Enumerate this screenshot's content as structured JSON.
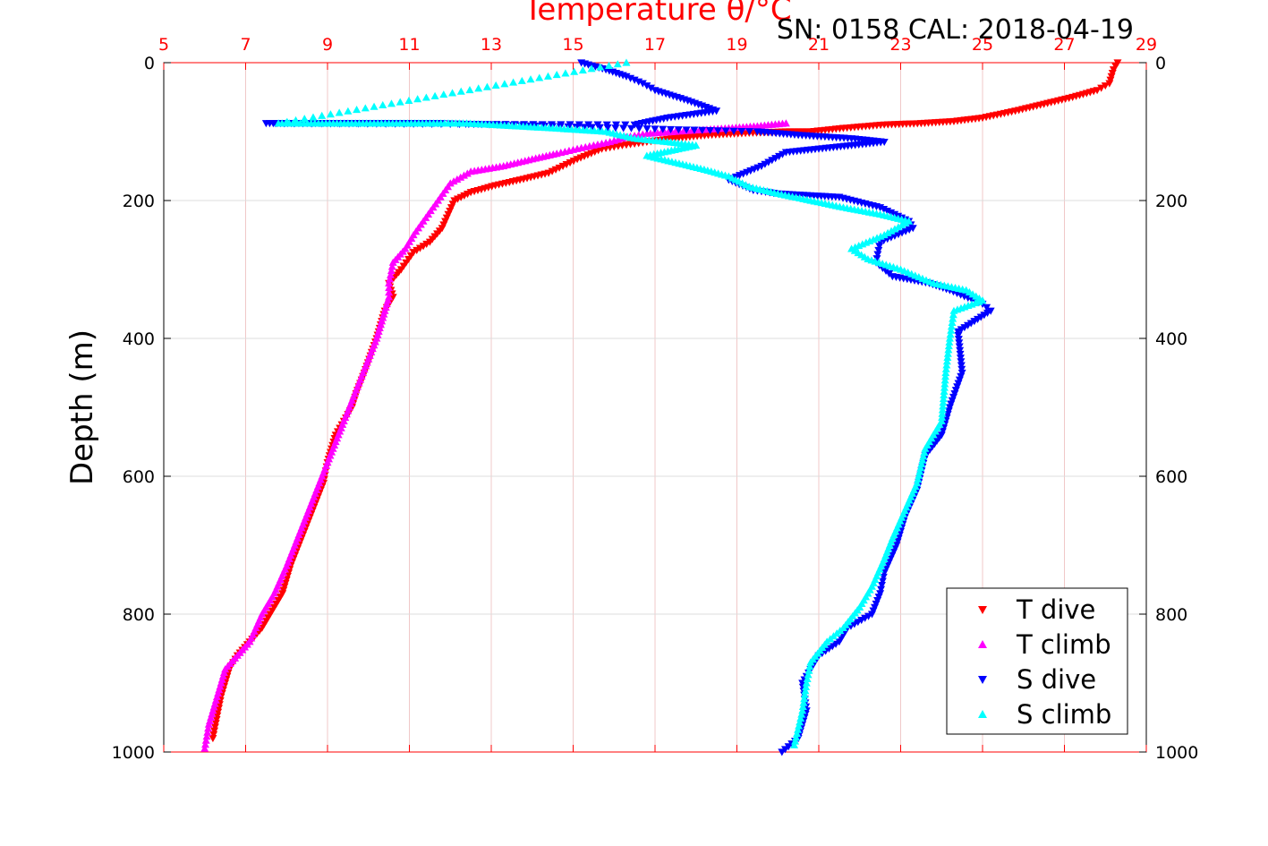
{
  "chart_data": {
    "type": "scatter",
    "title": "Temperature θ/°C",
    "subtitle": "SN: 0158  CAL: 2018-04-19",
    "ylabel": "Depth (m)",
    "xlim": [
      5,
      29
    ],
    "ylim": [
      0,
      1000
    ],
    "y_reversed": true,
    "grid": true,
    "x_ticks": [
      "5",
      "7",
      "9",
      "11",
      "13",
      "15",
      "17",
      "19",
      "21",
      "23",
      "25",
      "27",
      "29"
    ],
    "y_ticks": [
      "0",
      "200",
      "400",
      "600",
      "800",
      "1000"
    ],
    "legend_position": "bottom-right",
    "series": [
      {
        "name": "T dive",
        "color": "#ff0000",
        "marker": "triangle-down",
        "x": [
          28.3,
          28.2,
          28.1,
          27.8,
          27.2,
          26.5,
          25.8,
          25.0,
          24.3,
          23.5,
          22.6,
          21.6,
          20.8,
          20.2,
          19.3,
          18.3,
          17.4,
          16.8,
          16.2,
          15.7,
          15.1,
          14.4,
          13.7,
          13.1,
          12.5,
          12.1,
          11.8,
          11.5,
          11.1,
          10.8,
          10.5,
          10.6,
          10.4,
          10.2,
          9.9,
          9.7,
          9.6,
          9.4,
          9.2,
          9.0,
          8.9,
          8.7,
          8.5,
          8.3,
          8.1,
          7.9,
          7.6,
          7.4,
          7.1,
          6.8,
          6.6,
          6.4,
          6.2
        ],
        "y": [
          0,
          10,
          30,
          40,
          50,
          60,
          70,
          80,
          85,
          88,
          90,
          95,
          100,
          100,
          102,
          105,
          110,
          115,
          120,
          125,
          140,
          160,
          170,
          178,
          188,
          200,
          240,
          260,
          275,
          300,
          320,
          340,
          360,
          400,
          450,
          480,
          500,
          520,
          540,
          580,
          610,
          640,
          670,
          700,
          730,
          770,
          800,
          820,
          840,
          860,
          880,
          920,
          980
        ]
      },
      {
        "name": "T climb",
        "color": "#ff00ff",
        "marker": "triangle-up",
        "x": [
          20.2,
          19.5,
          18.8,
          18.0,
          17.5,
          16.8,
          16.3,
          15.9,
          15.5,
          15.1,
          14.6,
          14.0,
          13.3,
          12.5,
          12.0,
          11.7,
          11.4,
          11.1,
          10.9,
          10.6,
          10.5,
          10.5,
          10.4,
          10.2,
          10.0,
          9.8,
          9.6,
          9.4,
          9.2,
          9.0,
          8.8,
          8.6,
          8.4,
          8.2,
          8.0,
          7.7,
          7.4,
          7.1,
          6.8,
          6.5,
          6.3,
          6.1,
          6.0
        ],
        "y": [
          88,
          92,
          95,
          98,
          100,
          103,
          108,
          115,
          120,
          125,
          132,
          140,
          150,
          158,
          175,
          200,
          225,
          250,
          270,
          290,
          320,
          340,
          360,
          400,
          430,
          460,
          490,
          520,
          550,
          580,
          610,
          640,
          670,
          700,
          730,
          770,
          800,
          840,
          860,
          880,
          920,
          960,
          995
        ]
      },
      {
        "name": "S dive",
        "color": "#0000ff",
        "marker": "triangle-down",
        "x": [
          15.2,
          15.8,
          16.3,
          16.7,
          17.0,
          17.8,
          18.5,
          17.3,
          16.5,
          7.5,
          8.2,
          8.8,
          9.8,
          10.4,
          11.2,
          11.8,
          19.5,
          20.5,
          21.8,
          22.6,
          20.2,
          19.6,
          18.8,
          19.4,
          20.0,
          21.5,
          22.5,
          23.2,
          23.3,
          22.5,
          22.4,
          22.8,
          23.7,
          24.2,
          25.0,
          25.2,
          24.4,
          24.5,
          24.2,
          24.0,
          23.6,
          23.4,
          23.1,
          22.9,
          22.6,
          22.5,
          22.3,
          21.7,
          21.5,
          21.0,
          20.6,
          20.7,
          20.5,
          20.1
        ],
        "y": [
          0,
          10,
          20,
          30,
          40,
          55,
          70,
          80,
          90,
          88,
          88,
          88,
          88,
          88,
          88,
          88,
          100,
          105,
          110,
          115,
          130,
          150,
          170,
          185,
          190,
          195,
          210,
          230,
          240,
          260,
          290,
          310,
          320,
          330,
          350,
          360,
          390,
          450,
          500,
          540,
          570,
          620,
          660,
          700,
          740,
          770,
          800,
          820,
          840,
          860,
          900,
          940,
          980,
          1000
        ]
      },
      {
        "name": "S climb",
        "color": "#00ffff",
        "marker": "triangle-up",
        "x": [
          16.3,
          7.8,
          8.6,
          9.5,
          10.5,
          11.5,
          12.4,
          13.6,
          14.5,
          15.8,
          16.5,
          17.3,
          18.0,
          16.8,
          17.5,
          18.2,
          18.8,
          19.3,
          20.0,
          20.8,
          21.6,
          22.5,
          23.2,
          22.6,
          21.8,
          22.2,
          23.0,
          23.8,
          24.6,
          25.0,
          24.3,
          24.2,
          24.1,
          24.0,
          23.6,
          23.4,
          23.1,
          22.8,
          22.6,
          22.3,
          22.0,
          21.6,
          21.2,
          20.8,
          20.7,
          20.6,
          20.4
        ],
        "y": [
          0,
          88,
          88,
          88,
          88,
          88,
          88,
          92,
          95,
          100,
          110,
          115,
          120,
          135,
          145,
          155,
          165,
          180,
          190,
          200,
          210,
          220,
          230,
          250,
          270,
          285,
          300,
          320,
          330,
          345,
          360,
          400,
          450,
          520,
          560,
          610,
          650,
          690,
          720,
          760,
          790,
          820,
          840,
          870,
          900,
          940,
          990
        ]
      }
    ]
  }
}
